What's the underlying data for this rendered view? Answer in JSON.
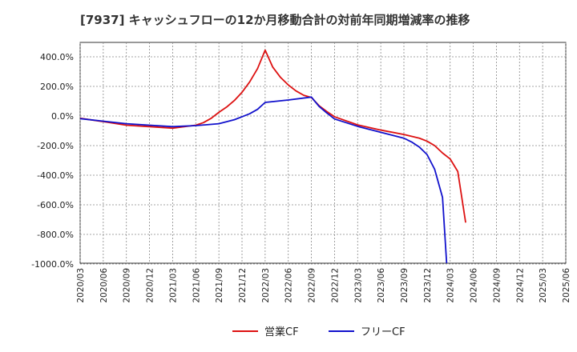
{
  "chart_data": {
    "type": "line",
    "title": "[7937]  キャッシュフローの12か月移動合計の対前年同期増減率の推移",
    "xlabel": "",
    "ylabel": "",
    "ylim": [
      -1000,
      500
    ],
    "yticks": [
      400,
      200,
      0,
      -200,
      -400,
      -600,
      -800,
      -1000
    ],
    "ytick_labels": [
      "400.0%",
      "200.0%",
      "0.0%",
      "-200.0%",
      "-400.0%",
      "-600.0%",
      "-800.0%",
      "-1000.0%"
    ],
    "x_categories": [
      "2020/03",
      "2020/06",
      "2020/09",
      "2020/12",
      "2021/03",
      "2021/06",
      "2021/09",
      "2021/12",
      "2022/03",
      "2022/06",
      "2022/09",
      "2022/12",
      "2023/03",
      "2023/06",
      "2023/09",
      "2023/12",
      "2024/03",
      "2024/06",
      "2024/09",
      "2024/12",
      "2025/03",
      "2025/06"
    ],
    "grid": true,
    "legend_position": "bottom",
    "series": [
      {
        "name": "営業CF",
        "color": "#dd1111",
        "points": [
          [
            0,
            -15
          ],
          [
            1,
            -38
          ],
          [
            2,
            -62
          ],
          [
            3,
            -72
          ],
          [
            4,
            -82
          ],
          [
            5,
            -62
          ],
          [
            5.33,
            -45
          ],
          [
            5.67,
            -15
          ],
          [
            6,
            25
          ],
          [
            6.33,
            60
          ],
          [
            6.67,
            105
          ],
          [
            7,
            160
          ],
          [
            7.33,
            230
          ],
          [
            7.67,
            320
          ],
          [
            8,
            445
          ],
          [
            8.33,
            330
          ],
          [
            8.67,
            260
          ],
          [
            9,
            210
          ],
          [
            9.33,
            170
          ],
          [
            9.67,
            140
          ],
          [
            10,
            125
          ],
          [
            10.33,
            70
          ],
          [
            10.67,
            30
          ],
          [
            11,
            -5
          ],
          [
            12,
            -60
          ],
          [
            13,
            -95
          ],
          [
            14,
            -125
          ],
          [
            14.67,
            -150
          ],
          [
            15,
            -170
          ],
          [
            15.33,
            -200
          ],
          [
            15.67,
            -250
          ],
          [
            16,
            -290
          ],
          [
            16.33,
            -375
          ],
          [
            16.67,
            -720
          ]
        ]
      },
      {
        "name": "フリーCF",
        "color": "#1111cc",
        "points": [
          [
            0,
            -18
          ],
          [
            1,
            -35
          ],
          [
            2,
            -52
          ],
          [
            3,
            -62
          ],
          [
            4,
            -72
          ],
          [
            5,
            -65
          ],
          [
            6,
            -52
          ],
          [
            6.67,
            -25
          ],
          [
            7,
            -5
          ],
          [
            7.33,
            15
          ],
          [
            7.67,
            45
          ],
          [
            8,
            92
          ],
          [
            9,
            108
          ],
          [
            10,
            128
          ],
          [
            10.33,
            65
          ],
          [
            10.67,
            20
          ],
          [
            11,
            -20
          ],
          [
            12,
            -70
          ],
          [
            13,
            -110
          ],
          [
            14,
            -150
          ],
          [
            14.33,
            -175
          ],
          [
            14.67,
            -210
          ],
          [
            15,
            -260
          ],
          [
            15.33,
            -360
          ],
          [
            15.67,
            -550
          ],
          [
            15.85,
            -1000
          ]
        ]
      }
    ]
  }
}
